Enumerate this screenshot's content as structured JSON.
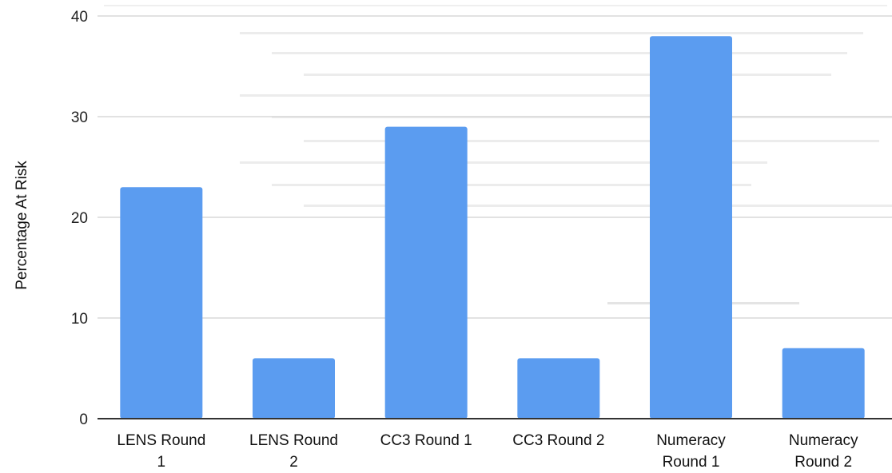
{
  "chart_data": {
    "type": "bar",
    "title": "",
    "xlabel": "",
    "ylabel": "Percentage At Risk",
    "ylim": [
      0,
      40
    ],
    "yticks": [
      0,
      10,
      20,
      30,
      40
    ],
    "grid": true,
    "legend": "none",
    "categories": [
      [
        "LENS Round",
        "1"
      ],
      [
        "LENS Round",
        "2"
      ],
      [
        "CC3 Round 1"
      ],
      [
        "CC3 Round 2"
      ],
      [
        "Numeracy",
        "Round 1"
      ],
      [
        "Numeracy",
        "Round 2"
      ]
    ],
    "values": [
      23,
      6,
      29,
      6,
      38,
      7
    ],
    "bar_color": "#5b9cf0",
    "grid_color": "#d9d9d9",
    "axis_color": "#333333"
  }
}
